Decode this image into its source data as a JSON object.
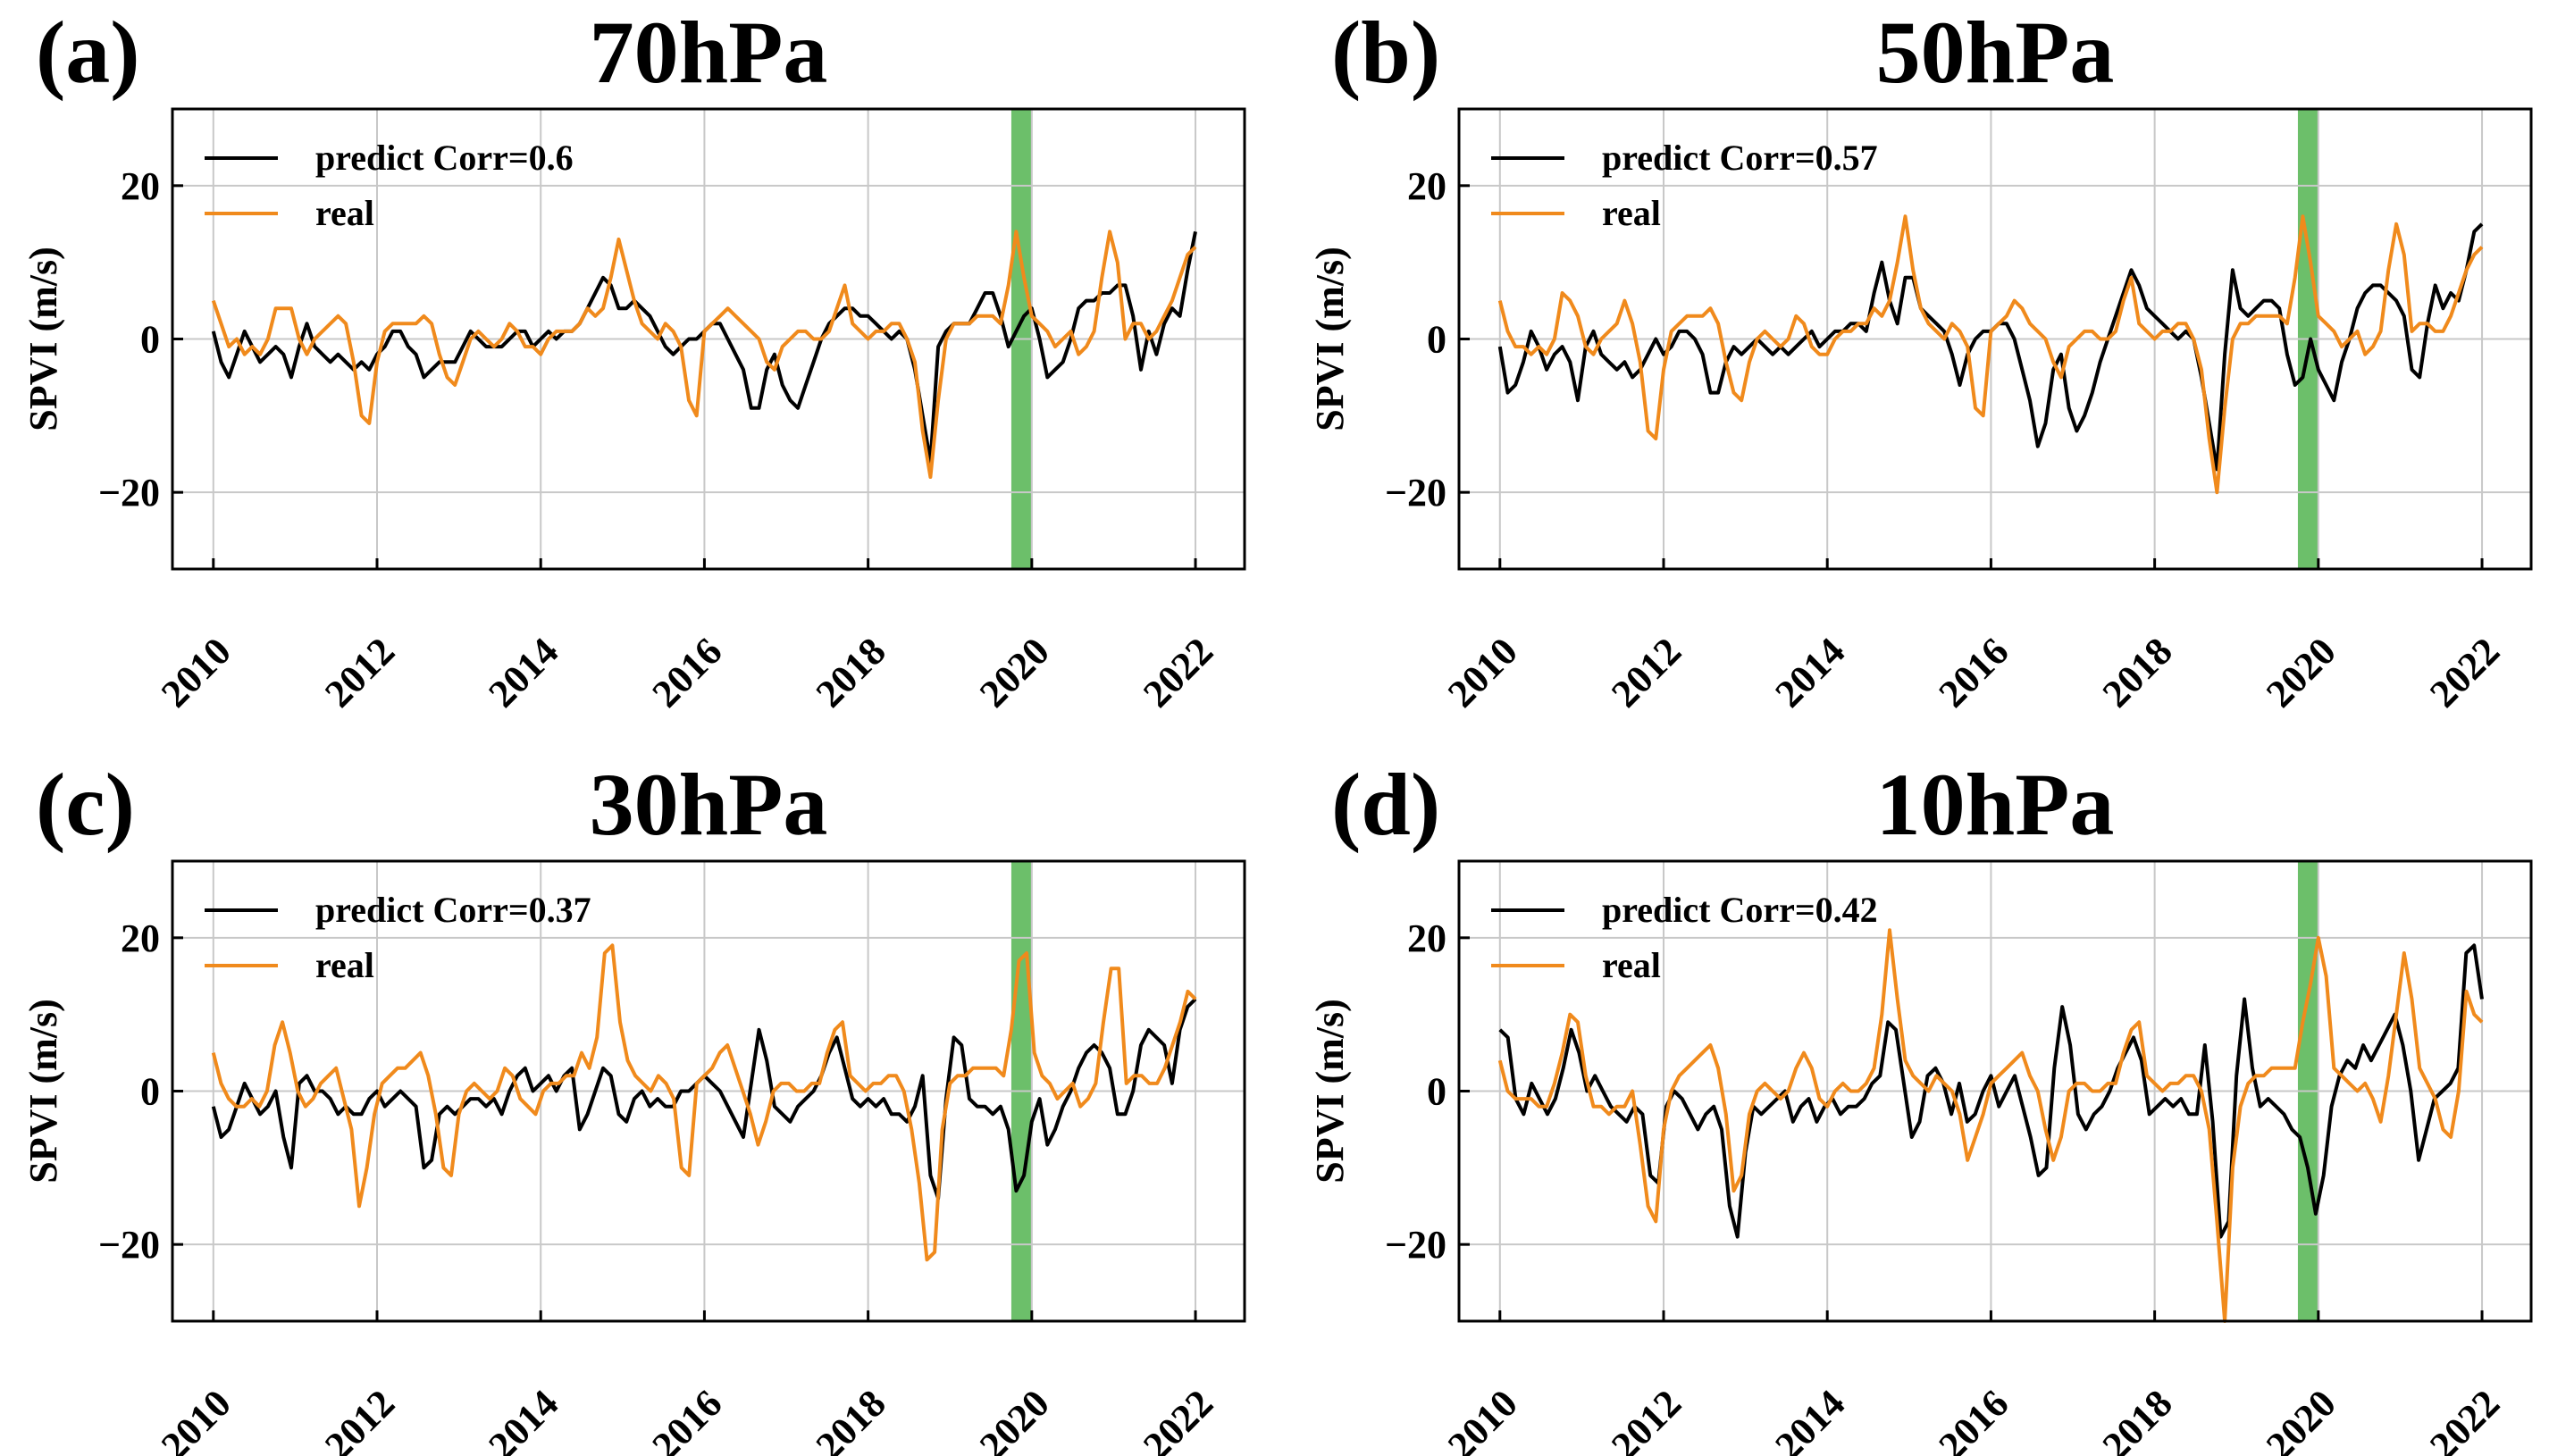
{
  "chart_data": [
    {
      "type": "line",
      "panel_label": "(a)",
      "title": "70hPa",
      "ylabel": "SPVI (m/s)",
      "xlabel": "",
      "ylim": [
        -30,
        30
      ],
      "xlim": [
        2009.5,
        2022.6
      ],
      "yticks": [
        -20,
        0,
        20
      ],
      "xticks": [
        2010,
        2012,
        2014,
        2016,
        2018,
        2020,
        2022
      ],
      "grid": true,
      "legend_position": "top-left",
      "highlight_band": {
        "x0": 2019.75,
        "x1": 2020.0,
        "color": "#6cbf6a"
      },
      "series": [
        {
          "name": "predict Corr=0.6",
          "color": "#000000",
          "values": [
            1,
            -3,
            -5,
            -2,
            1,
            -1,
            -3,
            -2,
            -1,
            -2,
            -5,
            -1,
            2,
            -1,
            -2,
            -3,
            -2,
            -3,
            -4,
            -3,
            -4,
            -2,
            -1,
            1,
            1,
            -1,
            -2,
            -5,
            -4,
            -3,
            -3,
            -3,
            -1,
            1,
            0,
            -1,
            -1,
            -1,
            0,
            1,
            1,
            -1,
            0,
            1,
            0,
            1,
            1,
            2,
            4,
            6,
            8,
            7,
            4,
            4,
            5,
            4,
            3,
            1,
            -1,
            -2,
            -1,
            0,
            0,
            1,
            2,
            2,
            0,
            -2,
            -4,
            -9,
            -9,
            -4,
            -2,
            -6,
            -8,
            -9,
            -6,
            -3,
            0,
            2,
            3,
            4,
            4,
            3,
            3,
            2,
            1,
            0,
            1,
            0,
            -4,
            -10,
            -16,
            -1,
            1,
            2,
            2,
            2,
            4,
            6,
            6,
            3,
            -1,
            1,
            3,
            4,
            0,
            -5,
            -4,
            -3,
            0,
            4,
            5,
            5,
            6,
            6,
            7,
            7,
            3,
            -4,
            1,
            -2,
            2,
            4,
            3,
            9,
            14
          ]
        },
        {
          "name": "real",
          "color": "#f08a1c",
          "values": [
            5,
            2,
            -1,
            0,
            -2,
            -1,
            -2,
            0,
            4,
            4,
            4,
            0,
            -2,
            0,
            1,
            2,
            3,
            2,
            -3,
            -10,
            -11,
            -3,
            1,
            2,
            2,
            2,
            2,
            3,
            2,
            -2,
            -5,
            -6,
            -3,
            0,
            1,
            0,
            -1,
            0,
            2,
            1,
            -1,
            -1,
            -2,
            0,
            1,
            1,
            1,
            2,
            4,
            3,
            4,
            8,
            13,
            9,
            5,
            2,
            1,
            0,
            2,
            1,
            -1,
            -8,
            -10,
            1,
            2,
            3,
            4,
            3,
            2,
            1,
            0,
            -3,
            -4,
            -1,
            0,
            1,
            1,
            0,
            0,
            1,
            4,
            7,
            2,
            1,
            0,
            1,
            1,
            2,
            2,
            0,
            -3,
            -12,
            -18,
            -8,
            0,
            2,
            2,
            2,
            3,
            3,
            3,
            2,
            7,
            14,
            8,
            3,
            2,
            1,
            -1,
            0,
            1,
            -2,
            -1,
            1,
            8,
            14,
            10,
            0,
            2,
            2,
            0,
            1,
            3,
            5,
            8,
            11,
            12
          ]
        }
      ]
    },
    {
      "type": "line",
      "panel_label": "(b)",
      "title": "50hPa",
      "ylabel": "SPVI (m/s)",
      "xlabel": "",
      "ylim": [
        -30,
        30
      ],
      "xlim": [
        2009.5,
        2022.6
      ],
      "yticks": [
        -20,
        0,
        20
      ],
      "xticks": [
        2010,
        2012,
        2014,
        2016,
        2018,
        2020,
        2022
      ],
      "grid": true,
      "legend_position": "top-left",
      "highlight_band": {
        "x0": 2019.75,
        "x1": 2020.0,
        "color": "#6cbf6a"
      },
      "series": [
        {
          "name": "predict Corr=0.57",
          "color": "#000000",
          "values": [
            -1,
            -7,
            -6,
            -3,
            1,
            -1,
            -4,
            -2,
            -1,
            -3,
            -8,
            -1,
            1,
            -2,
            -3,
            -4,
            -3,
            -5,
            -4,
            -2,
            0,
            -2,
            -1,
            1,
            1,
            0,
            -2,
            -7,
            -7,
            -3,
            -1,
            -2,
            -1,
            0,
            -1,
            -2,
            -1,
            -2,
            -1,
            0,
            1,
            -1,
            0,
            1,
            1,
            2,
            2,
            1,
            6,
            10,
            5,
            2,
            8,
            8,
            4,
            3,
            2,
            1,
            -2,
            -6,
            -2,
            0,
            1,
            1,
            2,
            2,
            0,
            -4,
            -8,
            -14,
            -11,
            -4,
            -2,
            -9,
            -12,
            -10,
            -7,
            -3,
            0,
            3,
            6,
            9,
            7,
            4,
            3,
            2,
            1,
            0,
            1,
            0,
            -5,
            -11,
            -17,
            -2,
            9,
            4,
            3,
            4,
            5,
            5,
            4,
            -2,
            -6,
            -5,
            0,
            -4,
            -6,
            -8,
            -3,
            0,
            4,
            6,
            7,
            7,
            6,
            5,
            3,
            -4,
            -5,
            2,
            7,
            4,
            6,
            5,
            9,
            14,
            15
          ]
        },
        {
          "name": "real",
          "color": "#f08a1c",
          "values": [
            5,
            1,
            -1,
            -1,
            -2,
            -1,
            -2,
            0,
            6,
            5,
            3,
            -1,
            -2,
            0,
            1,
            2,
            5,
            2,
            -3,
            -12,
            -13,
            -4,
            1,
            2,
            3,
            3,
            3,
            4,
            2,
            -3,
            -7,
            -8,
            -3,
            0,
            1,
            0,
            -1,
            0,
            3,
            2,
            -1,
            -2,
            -2,
            0,
            1,
            1,
            2,
            2,
            4,
            3,
            5,
            10,
            16,
            9,
            4,
            2,
            1,
            0,
            2,
            1,
            -1,
            -9,
            -10,
            1,
            2,
            3,
            5,
            4,
            2,
            1,
            0,
            -3,
            -5,
            -1,
            0,
            1,
            1,
            0,
            0,
            1,
            5,
            8,
            2,
            1,
            0,
            1,
            1,
            2,
            2,
            0,
            -4,
            -13,
            -20,
            -9,
            0,
            2,
            2,
            3,
            3,
            3,
            3,
            2,
            8,
            16,
            10,
            3,
            2,
            1,
            -1,
            0,
            1,
            -2,
            -1,
            1,
            9,
            15,
            11,
            1,
            2,
            2,
            1,
            1,
            3,
            6,
            9,
            11,
            12
          ]
        }
      ]
    },
    {
      "type": "line",
      "panel_label": "(c)",
      "title": "30hPa",
      "ylabel": "SPVI (m/s)",
      "xlabel": "",
      "ylim": [
        -30,
        30
      ],
      "xlim": [
        2009.5,
        2022.6
      ],
      "yticks": [
        -20,
        0,
        20
      ],
      "xticks": [
        2010,
        2012,
        2014,
        2016,
        2018,
        2020,
        2022
      ],
      "grid": true,
      "legend_position": "top-left",
      "highlight_band": {
        "x0": 2019.75,
        "x1": 2020.0,
        "color": "#6cbf6a"
      },
      "series": [
        {
          "name": "predict Corr=0.37",
          "color": "#000000",
          "values": [
            -2,
            -6,
            -5,
            -2,
            1,
            -1,
            -3,
            -2,
            0,
            -6,
            -10,
            1,
            2,
            0,
            0,
            -1,
            -3,
            -2,
            -3,
            -3,
            -1,
            0,
            -2,
            -1,
            0,
            -1,
            -2,
            -10,
            -9,
            -3,
            -2,
            -3,
            -2,
            -1,
            -1,
            -2,
            -1,
            -3,
            0,
            2,
            3,
            0,
            1,
            2,
            0,
            2,
            3,
            -5,
            -3,
            0,
            3,
            2,
            -3,
            -4,
            -1,
            0,
            -2,
            -1,
            -2,
            -2,
            0,
            0,
            1,
            2,
            1,
            0,
            -2,
            -4,
            -6,
            1,
            8,
            4,
            -2,
            -3,
            -4,
            -2,
            -1,
            0,
            2,
            5,
            7,
            3,
            -1,
            -2,
            -1,
            -2,
            -1,
            -3,
            -3,
            -4,
            -2,
            2,
            -11,
            -14,
            -1,
            7,
            6,
            -1,
            -2,
            -2,
            -3,
            -2,
            -5,
            -13,
            -11,
            -4,
            -1,
            -7,
            -5,
            -2,
            0,
            3,
            5,
            6,
            5,
            3,
            -3,
            -3,
            0,
            6,
            8,
            7,
            6,
            1,
            8,
            11,
            12
          ]
        },
        {
          "name": "real",
          "color": "#f08a1c",
          "values": [
            5,
            1,
            -1,
            -2,
            -2,
            -1,
            -2,
            0,
            6,
            9,
            5,
            0,
            -2,
            -1,
            1,
            2,
            3,
            -1,
            -5,
            -15,
            -10,
            -3,
            1,
            2,
            3,
            3,
            4,
            5,
            2,
            -3,
            -10,
            -11,
            -3,
            0,
            1,
            0,
            -1,
            0,
            3,
            2,
            -1,
            -2,
            -3,
            0,
            1,
            1,
            2,
            2,
            5,
            3,
            7,
            18,
            19,
            9,
            4,
            2,
            1,
            0,
            2,
            1,
            -1,
            -10,
            -11,
            1,
            2,
            3,
            5,
            6,
            3,
            0,
            -3,
            -7,
            -4,
            0,
            1,
            1,
            0,
            0,
            1,
            1,
            5,
            8,
            9,
            2,
            1,
            0,
            1,
            1,
            2,
            2,
            0,
            -5,
            -12,
            -22,
            -21,
            -5,
            1,
            2,
            2,
            3,
            3,
            3,
            3,
            2,
            8,
            17,
            18,
            5,
            2,
            1,
            -1,
            0,
            1,
            -2,
            -1,
            1,
            9,
            16,
            16,
            1,
            2,
            2,
            1,
            1,
            3,
            6,
            9,
            13,
            12
          ]
        }
      ]
    },
    {
      "type": "line",
      "panel_label": "(d)",
      "title": "10hPa",
      "ylabel": "SPVI (m/s)",
      "xlabel": "",
      "ylim": [
        -30,
        30
      ],
      "xlim": [
        2009.5,
        2022.6
      ],
      "yticks": [
        -20,
        0,
        20
      ],
      "xticks": [
        2010,
        2012,
        2014,
        2016,
        2018,
        2020,
        2022
      ],
      "grid": true,
      "legend_position": "top-left",
      "highlight_band": {
        "x0": 2019.75,
        "x1": 2020.0,
        "color": "#6cbf6a"
      },
      "series": [
        {
          "name": "predict Corr=0.42",
          "color": "#000000",
          "values": [
            8,
            7,
            -1,
            -3,
            1,
            -1,
            -3,
            -1,
            3,
            8,
            5,
            0,
            2,
            0,
            -2,
            -3,
            -4,
            -2,
            -3,
            -11,
            -12,
            -2,
            0,
            -1,
            -3,
            -5,
            -3,
            -2,
            -5,
            -15,
            -19,
            -8,
            -2,
            -3,
            -2,
            -1,
            0,
            -4,
            -2,
            -1,
            -4,
            -2,
            -1,
            -3,
            -2,
            -2,
            -1,
            1,
            2,
            9,
            8,
            1,
            -6,
            -4,
            2,
            3,
            1,
            -3,
            1,
            -4,
            -3,
            0,
            2,
            -2,
            0,
            2,
            -2,
            -6,
            -11,
            -10,
            3,
            11,
            6,
            -3,
            -5,
            -3,
            -2,
            0,
            3,
            5,
            7,
            4,
            -3,
            -2,
            -1,
            -2,
            -1,
            -3,
            -3,
            6,
            -4,
            -19,
            -17,
            2,
            12,
            3,
            -2,
            -1,
            -2,
            -3,
            -5,
            -6,
            -10,
            -16,
            -11,
            -2,
            2,
            4,
            3,
            6,
            4,
            6,
            8,
            10,
            6,
            0,
            -9,
            -5,
            -1,
            0,
            1,
            3,
            18,
            19,
            12
          ]
        },
        {
          "name": "real",
          "color": "#f08a1c",
          "values": [
            4,
            0,
            -1,
            -1,
            -1,
            -2,
            -2,
            1,
            5,
            10,
            9,
            2,
            -2,
            -2,
            -3,
            -2,
            -2,
            0,
            -7,
            -15,
            -17,
            -5,
            0,
            2,
            3,
            4,
            5,
            6,
            3,
            -3,
            -13,
            -11,
            -3,
            0,
            1,
            0,
            -1,
            0,
            3,
            5,
            3,
            -1,
            -2,
            0,
            1,
            0,
            0,
            1,
            3,
            10,
            21,
            12,
            4,
            2,
            1,
            0,
            2,
            1,
            0,
            -3,
            -9,
            -6,
            -3,
            1,
            2,
            3,
            4,
            5,
            2,
            0,
            -5,
            -9,
            -6,
            0,
            1,
            1,
            0,
            0,
            1,
            1,
            5,
            8,
            9,
            2,
            1,
            0,
            1,
            1,
            2,
            2,
            0,
            -5,
            -17,
            -30,
            -10,
            -2,
            1,
            2,
            2,
            3,
            3,
            3,
            3,
            9,
            14,
            20,
            15,
            3,
            2,
            1,
            0,
            1,
            -1,
            -4,
            2,
            10,
            18,
            12,
            3,
            1,
            -1,
            -5,
            -6,
            0,
            13,
            10,
            9
          ]
        }
      ]
    }
  ]
}
